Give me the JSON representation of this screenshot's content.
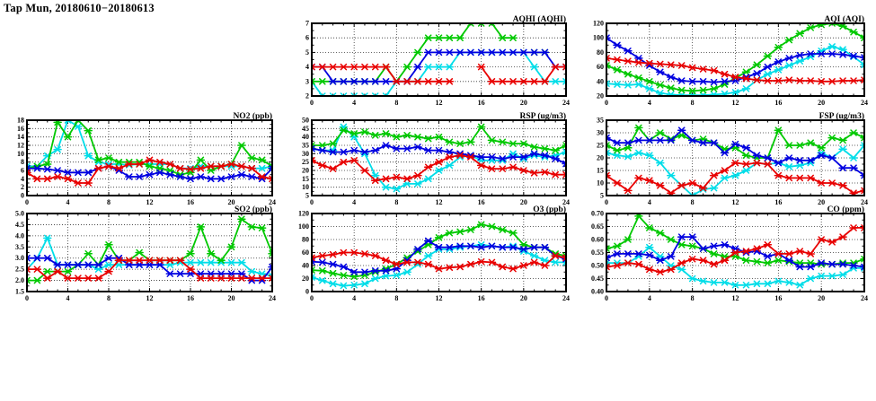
{
  "title": "Tap Mun, 20180610−20180613",
  "colors": {
    "red": "#e80000",
    "blue": "#0000e0",
    "green": "#00c800",
    "cyan": "#00dde8",
    "frame": "#000000",
    "grid": "#333333"
  },
  "x_ticks": [
    "0",
    "4",
    "8",
    "12",
    "16",
    "20",
    "24"
  ],
  "x_range": [
    0,
    24
  ],
  "x_grid": [
    4,
    8,
    12,
    16,
    20
  ],
  "series_order": [
    "cyan",
    "green",
    "blue",
    "red"
  ],
  "chart_data": [
    {
      "id": "aqhi",
      "type": "line",
      "title": "AQHI (AQHI)",
      "ylim": [
        2,
        7
      ],
      "yticks": [
        "2",
        "3",
        "4",
        "5",
        "6",
        "7"
      ],
      "series": {
        "red": [
          4,
          4,
          4,
          4,
          4,
          4,
          4,
          4,
          3,
          3,
          3,
          3,
          3,
          3,
          null,
          null,
          4,
          3,
          3,
          3,
          3,
          3,
          3,
          4,
          4
        ],
        "blue": [
          4,
          4,
          3,
          3,
          3,
          3,
          3,
          3,
          3,
          3,
          4,
          5,
          5,
          5,
          5,
          5,
          5,
          5,
          5,
          5,
          5,
          5,
          5,
          4,
          4
        ],
        "green": [
          3,
          3,
          3,
          3,
          3,
          3,
          3,
          4,
          3,
          4,
          5,
          6,
          6,
          6,
          6,
          7,
          7,
          7,
          6,
          6,
          null,
          5,
          5,
          null,
          4
        ],
        "cyan": [
          3,
          2,
          2,
          2,
          2,
          2,
          2,
          2,
          3,
          3,
          3,
          4,
          4,
          4,
          5,
          5,
          5,
          5,
          5,
          5,
          5,
          4,
          3,
          3,
          3
        ]
      }
    },
    {
      "id": "aqi",
      "type": "line",
      "title": "AQI (AQI)",
      "ylim": [
        20,
        120
      ],
      "yticks": [
        "20",
        "40",
        "60",
        "80",
        "100",
        "120"
      ],
      "series": {
        "blue": [
          100,
          90,
          82,
          72,
          62,
          53,
          46,
          41,
          40,
          40,
          39,
          40,
          41,
          46,
          51,
          60,
          67,
          72,
          76,
          78,
          78,
          78,
          77,
          75,
          73
        ],
        "red": [
          72,
          70,
          68,
          66,
          65,
          64,
          63,
          62,
          59,
          57,
          55,
          50,
          46,
          44,
          42,
          41,
          41,
          42,
          41,
          41,
          40,
          40,
          41,
          41,
          42
        ],
        "green": [
          62,
          56,
          50,
          45,
          40,
          35,
          31,
          28,
          27,
          28,
          30,
          36,
          45,
          53,
          63,
          75,
          87,
          97,
          106,
          114,
          118,
          120,
          116,
          108,
          100
        ],
        "cyan": [
          37,
          36,
          35,
          36,
          30,
          24,
          22,
          21,
          21,
          21,
          22,
          23,
          25,
          30,
          42,
          50,
          56,
          62,
          68,
          74,
          82,
          88,
          84,
          74,
          63
        ]
      }
    },
    {
      "id": "no2",
      "type": "line",
      "title": "NO2 (ppb)",
      "ylim": [
        0,
        18
      ],
      "yticks": [
        "0",
        "2",
        "4",
        "6",
        "8",
        "10",
        "12",
        "14",
        "16",
        "18"
      ],
      "series": {
        "green": [
          6.5,
          7,
          7.5,
          17.5,
          14,
          18,
          15.5,
          8.5,
          9,
          8,
          8,
          8,
          7,
          6.5,
          6,
          5,
          5.5,
          8.5,
          6,
          7,
          7.5,
          12,
          9,
          8.5,
          7
        ],
        "cyan": [
          7,
          7,
          9.5,
          11,
          18,
          16.5,
          9.5,
          8,
          7.5,
          7.5,
          7.3,
          7.5,
          7.5,
          7.5,
          7.5,
          6.5,
          6.5,
          7,
          7,
          7,
          7,
          7,
          6.5,
          6.5,
          7
        ],
        "blue": [
          6.5,
          6.5,
          6.3,
          6,
          5.5,
          5.5,
          5.5,
          6.5,
          7,
          6,
          4.5,
          4.5,
          5,
          5.5,
          5,
          4.5,
          4,
          4.5,
          4,
          4,
          4.5,
          5,
          4.5,
          4,
          6.5
        ],
        "red": [
          5.5,
          4,
          4,
          4.5,
          4,
          3,
          3,
          6.5,
          7,
          6.5,
          7.5,
          7.5,
          8.5,
          8,
          7.5,
          6.5,
          6.3,
          6.5,
          7,
          7,
          7.5,
          7,
          6.5,
          4.5,
          4
        ]
      }
    },
    {
      "id": "rsp",
      "type": "line",
      "title": "RSP (ug/m3)",
      "ylim": [
        5,
        50
      ],
      "yticks": [
        "5",
        "10",
        "15",
        "20",
        "25",
        "30",
        "35",
        "40",
        "45",
        "50"
      ],
      "series": {
        "green": [
          35,
          35,
          36,
          44,
          42,
          43,
          41,
          42,
          40,
          41,
          40,
          39,
          40,
          37,
          36,
          37,
          46,
          38,
          37,
          36,
          36,
          34,
          33,
          32,
          35
        ],
        "blue": [
          33,
          32,
          31,
          31,
          32,
          31,
          32,
          35,
          33,
          33,
          34,
          32,
          32,
          31,
          30,
          29,
          28,
          28,
          27,
          28,
          28,
          30,
          29,
          27,
          24
        ],
        "cyan": [
          33,
          32,
          32,
          46,
          40,
          30,
          17,
          10,
          9,
          12,
          12,
          15,
          20,
          23,
          28,
          29,
          26,
          26,
          26,
          30,
          27,
          29,
          28,
          29,
          31
        ],
        "red": [
          26,
          23,
          21,
          25,
          26,
          20,
          14,
          15,
          16,
          15,
          17,
          22,
          25,
          28,
          29,
          28,
          23,
          21,
          21,
          22,
          20,
          18.5,
          19,
          17.5,
          17.5
        ]
      }
    },
    {
      "id": "fsp",
      "type": "line",
      "title": "FSP (ug/m3)",
      "ylim": [
        5,
        35
      ],
      "yticks": [
        "5",
        "10",
        "15",
        "20",
        "25",
        "30",
        "35"
      ],
      "series": {
        "blue": [
          28,
          26,
          26,
          27,
          27,
          27,
          27,
          31,
          27,
          26,
          26,
          22,
          25.5,
          24,
          21,
          20,
          18,
          20,
          19,
          19,
          21,
          20,
          16,
          16,
          13
        ],
        "green": [
          25,
          23,
          24,
          32,
          27,
          30,
          27.5,
          29,
          27,
          27.5,
          26,
          23.5,
          24,
          21,
          20,
          20,
          31,
          25,
          25,
          26,
          24,
          28,
          27,
          30,
          28
        ],
        "cyan": [
          22,
          21,
          20.5,
          22,
          21,
          18,
          13,
          9,
          5,
          7.5,
          8,
          12,
          13,
          15,
          18,
          17.5,
          18,
          16.5,
          17,
          18,
          22,
          20,
          23.5,
          20,
          25
        ],
        "red": [
          13,
          10,
          7,
          12,
          11,
          9,
          6,
          9,
          10,
          8,
          13,
          15,
          18,
          17.5,
          18,
          17.5,
          13,
          12,
          12,
          12,
          10,
          10,
          9,
          6,
          7
        ]
      }
    },
    {
      "id": "so2",
      "type": "line",
      "title": "SO2 (ppb)",
      "ylim": [
        1.5,
        5.0
      ],
      "yticks": [
        "1.5",
        "2.0",
        "2.5",
        "3.0",
        "3.5",
        "4.0",
        "4.5",
        "5.0"
      ],
      "series": {
        "blue": [
          3.0,
          3.0,
          3.0,
          2.7,
          2.7,
          2.7,
          2.7,
          2.7,
          3.0,
          3.0,
          2.7,
          2.7,
          2.7,
          2.7,
          2.3,
          2.3,
          2.3,
          2.3,
          2.3,
          2.3,
          2.3,
          2.3,
          2.0,
          2.0,
          2.6
        ],
        "cyan": [
          2.5,
          3.0,
          3.9,
          2.7,
          2.7,
          2.7,
          2.7,
          2.5,
          2.7,
          2.7,
          2.7,
          2.7,
          2.7,
          2.7,
          2.7,
          2.8,
          2.8,
          2.8,
          2.8,
          2.8,
          2.8,
          2.8,
          2.4,
          2.3,
          2.2
        ],
        "green": [
          2.0,
          2.0,
          2.4,
          2.4,
          2.4,
          2.7,
          3.2,
          2.7,
          3.6,
          2.9,
          2.9,
          3.25,
          2.9,
          2.9,
          2.9,
          2.9,
          3.2,
          4.4,
          3.2,
          2.9,
          3.5,
          4.75,
          4.4,
          4.35,
          3.2
        ],
        "red": [
          2.5,
          2.5,
          2.1,
          2.4,
          2.1,
          2.1,
          2.1,
          2.1,
          2.4,
          2.9,
          2.9,
          2.9,
          2.9,
          2.9,
          2.9,
          2.9,
          2.5,
          2.1,
          2.1,
          2.1,
          2.1,
          2.1,
          2.1,
          2.1,
          2.1
        ]
      }
    },
    {
      "id": "o3",
      "type": "line",
      "title": "O3 (ppb)",
      "ylim": [
        0,
        120
      ],
      "yticks": [
        "0",
        "20",
        "40",
        "60",
        "80",
        "100",
        "120"
      ],
      "series": {
        "red": [
          52,
          55,
          57,
          60,
          60,
          58,
          55,
          48,
          42,
          45,
          45,
          42,
          35,
          37,
          38,
          42,
          46,
          45,
          38,
          35,
          40,
          45,
          40,
          55,
          52
        ],
        "blue": [
          46,
          45,
          42,
          38,
          30,
          30,
          32,
          32,
          35,
          48,
          65,
          78,
          68,
          68,
          70,
          70,
          68,
          70,
          68,
          68,
          65,
          68,
          68,
          55,
          50
        ],
        "green": [
          33,
          32,
          28,
          25,
          23,
          25,
          30,
          35,
          42,
          52,
          62,
          72,
          83,
          90,
          92,
          95,
          103,
          100,
          95,
          90,
          72,
          68,
          68,
          58,
          55
        ],
        "cyan": [
          22,
          17,
          12,
          9,
          10,
          12,
          20,
          24,
          25,
          30,
          42,
          55,
          65,
          65,
          68,
          70,
          72,
          70,
          68,
          70,
          62,
          55,
          48,
          45,
          45
        ]
      }
    },
    {
      "id": "co",
      "type": "line",
      "title": "CO (ppm)",
      "ylim": [
        0.4,
        0.7
      ],
      "yticks": [
        "0.40",
        "0.45",
        "0.50",
        "0.55",
        "0.60",
        "0.65",
        "0.70"
      ],
      "series": {
        "green": [
          0.565,
          0.575,
          0.6,
          0.69,
          0.645,
          0.625,
          0.6,
          0.58,
          0.575,
          0.565,
          0.545,
          0.535,
          0.535,
          0.52,
          0.515,
          0.51,
          0.52,
          0.515,
          0.51,
          0.51,
          0.505,
          0.505,
          0.51,
          0.51,
          0.525
        ],
        "blue": [
          0.53,
          0.545,
          0.545,
          0.545,
          0.54,
          0.52,
          0.535,
          0.61,
          0.61,
          0.565,
          0.575,
          0.58,
          0.565,
          0.55,
          0.555,
          0.535,
          0.545,
          0.52,
          0.495,
          0.495,
          0.51,
          0.505,
          0.505,
          0.5,
          0.495
        ],
        "red": [
          0.495,
          0.5,
          0.51,
          0.505,
          0.485,
          0.475,
          0.485,
          0.51,
          0.525,
          0.52,
          0.505,
          0.52,
          0.55,
          0.555,
          0.565,
          0.58,
          0.545,
          0.545,
          0.555,
          0.545,
          0.6,
          0.59,
          0.61,
          0.645,
          0.645
        ],
        "cyan": [
          0.51,
          0.51,
          0.51,
          0.535,
          0.57,
          0.535,
          0.5,
          0.485,
          0.45,
          0.44,
          0.435,
          0.435,
          0.425,
          0.425,
          0.43,
          0.43,
          0.44,
          0.435,
          0.425,
          0.45,
          0.46,
          0.46,
          0.465,
          0.49,
          0.49
        ]
      }
    }
  ]
}
